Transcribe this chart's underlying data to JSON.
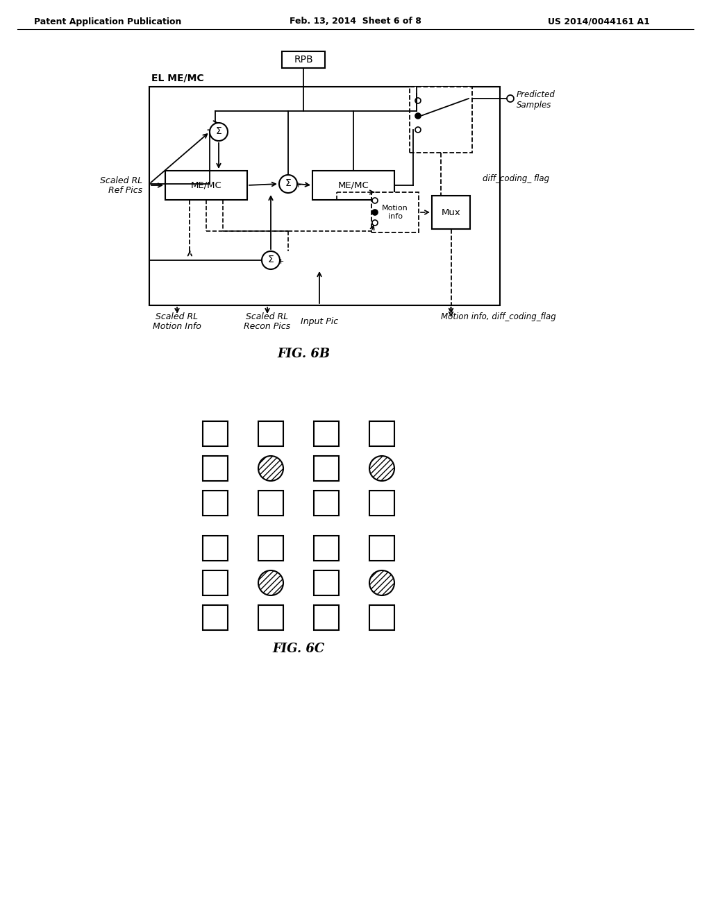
{
  "header_left": "Patent Application Publication",
  "header_mid": "Feb. 13, 2014  Sheet 6 of 8",
  "header_right": "US 2014/0044161 A1",
  "fig6b_label": "FIG. 6B",
  "fig6c_label": "FIG. 6C",
  "bg_color": "#ffffff",
  "text_color": "#000000"
}
